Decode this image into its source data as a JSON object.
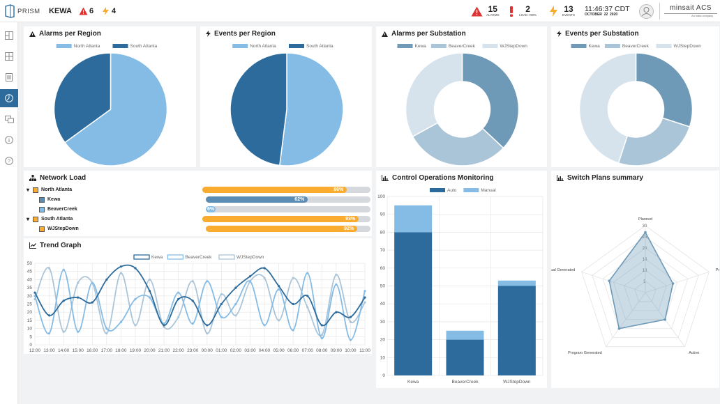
{
  "app": {
    "logo_text": "PRISM",
    "site": "KEWA",
    "alarm_count": "6",
    "event_count": "4"
  },
  "status": {
    "alarms": {
      "value": "15",
      "label": "ALARMS"
    },
    "load": {
      "value": "2",
      "label": "LOAD >90%"
    },
    "events": {
      "value": "13",
      "label": "EVENTS"
    },
    "time": "11:46:37 CDT",
    "date": "OCTOBER  22  2020"
  },
  "brand": {
    "name": "minsait ACS",
    "tagline": "An Indra company"
  },
  "sidebar": {
    "items": [
      "grid-icon",
      "layout-icon",
      "list-icon",
      "dashboard-icon",
      "chat-icon",
      "info-icon",
      "help-icon"
    ],
    "active_index": 3
  },
  "colors": {
    "light_blue": "#85bce6",
    "dark_blue": "#2c6b9b",
    "steel": "#6e9ab8",
    "pale": "#abc5d8",
    "paler": "#d6e2ec",
    "orange": "#f9ac2f",
    "grey": "#d5d9dd"
  },
  "panels": {
    "alarms_region": {
      "title": "Alarms per Region"
    },
    "events_region": {
      "title": "Events per Region"
    },
    "alarms_sub": {
      "title": "Alarms per Substation"
    },
    "events_sub": {
      "title": "Events per Substation"
    },
    "network_load": {
      "title": "Network Load"
    },
    "trend": {
      "title": "Trend Graph"
    },
    "control_ops": {
      "title": "Control Operations Monitoring"
    },
    "switch_plans": {
      "title": "Switch Plans summary"
    }
  },
  "network_load": {
    "rows": [
      {
        "label": "North Atlanta",
        "level": 0,
        "percent": 86,
        "percent_text": "86%",
        "color": "#f9ac2f"
      },
      {
        "label": "Kewa",
        "level": 1,
        "percent": 62,
        "percent_text": "62%",
        "color": "#5b8db4"
      },
      {
        "label": "BeaverCreek",
        "level": 1,
        "percent": 6,
        "percent_text": "6%",
        "color": "#85bce6"
      },
      {
        "label": "South Atlanta",
        "level": 0,
        "percent": 93,
        "percent_text": "93%",
        "color": "#f9ac2f"
      },
      {
        "label": "WJStepDown",
        "level": 1,
        "percent": 92,
        "percent_text": "92%",
        "color": "#f9ac2f"
      }
    ]
  },
  "chart_data": [
    {
      "type": "pie",
      "title": "Alarms per Region",
      "labels": [
        "North Atlanta",
        "South Atlanta"
      ],
      "values": [
        65,
        35
      ],
      "colors": [
        "#85bce6",
        "#2c6b9b"
      ],
      "legend": "top"
    },
    {
      "type": "pie",
      "title": "Events per Region",
      "labels": [
        "North Atlanta",
        "South Atlanta"
      ],
      "values": [
        52,
        48
      ],
      "colors": [
        "#85bce6",
        "#2c6b9b"
      ],
      "legend": "top"
    },
    {
      "type": "pie",
      "title": "Alarms per Substation",
      "labels": [
        "Kewa",
        "BeaverCreek",
        "WJStepDown"
      ],
      "values": [
        37,
        30,
        33
      ],
      "colors": [
        "#6e9ab8",
        "#abc5d8",
        "#d6e2ec"
      ],
      "donut": true,
      "legend": "top"
    },
    {
      "type": "pie",
      "title": "Events per Substation",
      "labels": [
        "Kewa",
        "BeaverCreek",
        "WJStepDown"
      ],
      "values": [
        30,
        25,
        45
      ],
      "colors": [
        "#6e9ab8",
        "#abc5d8",
        "#d6e2ec"
      ],
      "donut": true,
      "legend": "top"
    },
    {
      "type": "line",
      "title": "Trend Graph",
      "x": [
        "12:00",
        "13:00",
        "14:00",
        "15:00",
        "16:00",
        "17:00",
        "18:00",
        "19:00",
        "20:00",
        "21:00",
        "22:00",
        "23:00",
        "00:00",
        "01:00",
        "02:00",
        "03:00",
        "04:00",
        "05:00",
        "06:00",
        "07:00",
        "08:00",
        "09:00",
        "10:00",
        "11:00"
      ],
      "ylim": [
        0,
        50
      ],
      "yticks": [
        0,
        5,
        10,
        15,
        20,
        25,
        30,
        35,
        40,
        45,
        50
      ],
      "grid": true,
      "series": [
        {
          "name": "Kewa",
          "color": "#2c6b9b",
          "values": [
            32,
            18,
            27,
            29,
            26,
            40,
            48,
            47,
            33,
            12,
            28,
            27,
            12,
            25,
            35,
            42,
            47,
            36,
            25,
            30,
            12,
            20,
            17,
            29
          ]
        },
        {
          "name": "BeaverCreek",
          "color": "#85bce6",
          "values": [
            30,
            7,
            46,
            8,
            38,
            10,
            14,
            28,
            29,
            13,
            32,
            13,
            39,
            17,
            25,
            39,
            12,
            34,
            9,
            44,
            4,
            37,
            3,
            33
          ]
        },
        {
          "name": "WJStepDown",
          "color": "#abc5d8",
          "values": [
            28,
            47,
            8,
            38,
            38,
            7,
            44,
            12,
            40,
            11,
            17,
            39,
            7,
            31,
            18,
            39,
            41,
            15,
            41,
            23,
            6,
            43,
            14,
            26
          ]
        }
      ]
    },
    {
      "type": "bar",
      "title": "Control Operations Monitoring",
      "stacked": true,
      "categories": [
        "Kewa",
        "BeaverCreek",
        "WJStepDown"
      ],
      "series": [
        {
          "name": "Auto",
          "color": "#2c6b9b",
          "values": [
            80,
            20,
            50
          ]
        },
        {
          "name": "Manual",
          "color": "#85bce6",
          "values": [
            15,
            5,
            3
          ]
        }
      ],
      "ylim": [
        0,
        100
      ],
      "yticks": [
        0,
        10,
        20,
        30,
        40,
        50,
        60,
        70,
        80,
        90,
        100
      ]
    },
    {
      "type": "radar",
      "title": "Switch Plans summary",
      "categories": [
        "Planned",
        "Pending",
        "Active",
        "Program Generated",
        "Manual Generated"
      ],
      "values": [
        27,
        13,
        15,
        20,
        17
      ],
      "rlim": [
        0,
        30
      ],
      "rticks": [
        5,
        10,
        15,
        20,
        25,
        30
      ],
      "color": "#6e9ab8"
    }
  ]
}
